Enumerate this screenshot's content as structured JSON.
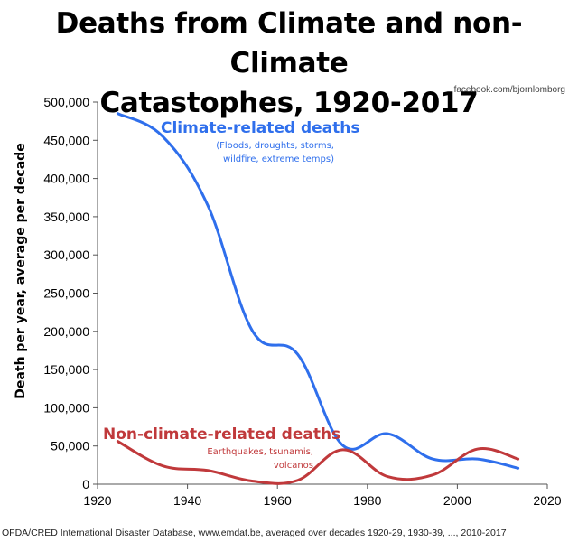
{
  "chart_data": {
    "type": "line",
    "title_line1": "Deaths from Climate and non-Climate",
    "title_line2": "Catastophes, 1920-2017",
    "credit": "facebook.com/bjornlomborg",
    "ylabel": "Death per year, average per decade",
    "xlabel": "",
    "xlim": [
      1920,
      2020
    ],
    "ylim": [
      0,
      500000
    ],
    "xticks": [
      1920,
      1940,
      1960,
      1980,
      2000,
      2020
    ],
    "yticks": [
      0,
      50000,
      100000,
      150000,
      200000,
      250000,
      300000,
      350000,
      400000,
      450000,
      500000
    ],
    "ytick_labels": [
      "0",
      "50,000",
      "100,000",
      "150,000",
      "200,000",
      "250,000",
      "300,000",
      "350,000",
      "400,000",
      "450,000",
      "500,000"
    ],
    "series": [
      {
        "name": "Climate-related deaths",
        "subtitle_line1": "(Floods, droughts, storms,",
        "subtitle_line2": "wildfire, extreme temps)",
        "color": "#2f6fec",
        "x": [
          1924.5,
          1934.5,
          1944.5,
          1954.5,
          1964.5,
          1974.5,
          1984.5,
          1994.5,
          2004.5,
          2013.5
        ],
        "y": [
          485000,
          455000,
          365000,
          200000,
          170000,
          51000,
          66000,
          33000,
          33000,
          21000
        ]
      },
      {
        "name": "Non-climate-related deaths",
        "subtitle_line1": "Earthquakes, tsunamis,",
        "subtitle_line2": "volcanos",
        "color": "#c0393b",
        "x": [
          1924.5,
          1934.5,
          1944.5,
          1954.5,
          1964.5,
          1974.5,
          1984.5,
          1994.5,
          2004.5,
          2013.5
        ],
        "y": [
          56000,
          24000,
          18000,
          4000,
          5000,
          45000,
          10000,
          12000,
          46000,
          33000
        ]
      }
    ],
    "source": "OFDA/CRED  International Disaster Database, www.emdat.be, averaged over decades 1920-29, 1930-39, ..., 2010-2017"
  }
}
